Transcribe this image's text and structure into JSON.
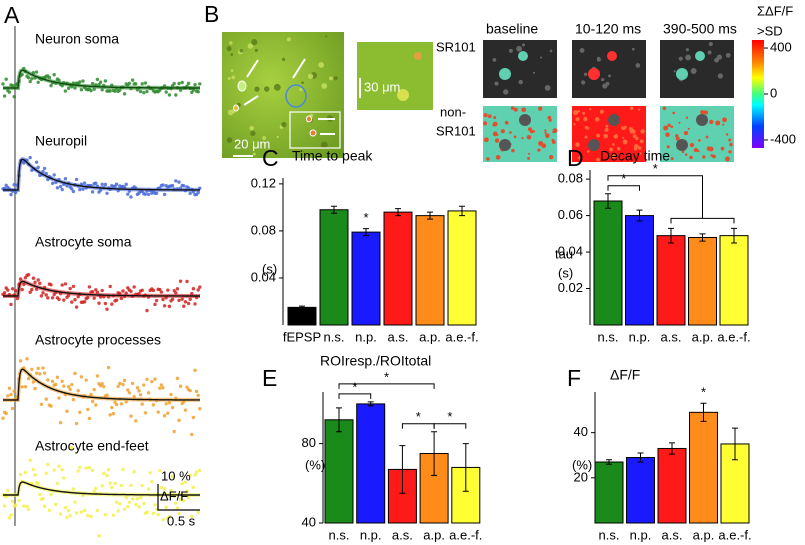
{
  "panel_a": {
    "letter": "A",
    "traces": [
      {
        "label": "Neuron soma",
        "color": "#2e8b2e"
      },
      {
        "label": "Neuropil",
        "color": "#4a6ad8"
      },
      {
        "label": "Astrocyte soma",
        "color": "#d42020"
      },
      {
        "label": "Astrocyte processes",
        "color": "#f0a030"
      },
      {
        "label": "Astrocyte end-feet",
        "color": "#f2f04a"
      }
    ],
    "scale_bar": {
      "y_label": [
        "10 %",
        "ΔF/F"
      ],
      "x_label": "0.5 s"
    }
  },
  "panel_b": {
    "letter": "B",
    "scale_labels": [
      "20 μm",
      "30 μm"
    ],
    "row_labels": [
      [
        "SR101"
      ],
      [
        "non-",
        "SR101"
      ]
    ],
    "column_labels": [
      "baseline",
      "10-120 ms",
      "390-500 ms"
    ],
    "colorbar": {
      "title": [
        "ΣΔF/F",
        ">SD"
      ],
      "lim": [
        -470,
        470
      ],
      "ticks": [
        400,
        0,
        -400
      ]
    }
  },
  "chart_data": [
    {
      "type": "bar",
      "panel": "C",
      "title": "Time to peak",
      "y_label": [
        "(s)"
      ],
      "categories": [
        "fEPSP",
        "n.s.",
        "n.p.",
        "a.s.",
        "a.p.",
        "a.e.-f."
      ],
      "colors": [
        "#000000",
        "#1a8a1a",
        "#1a1aff",
        "#ff1a1a",
        "#ff8c1a",
        "#ffff33"
      ],
      "values": [
        0.015,
        0.098,
        0.079,
        0.096,
        0.093,
        0.097
      ],
      "errors": [
        0.001,
        0.003,
        0.003,
        0.003,
        0.003,
        0.004
      ],
      "ylim": [
        0,
        0.125
      ],
      "yticks": [
        0.04,
        0.08,
        0.12
      ],
      "annotations": [
        "*"
      ]
    },
    {
      "type": "bar",
      "panel": "D",
      "title": "Decay time",
      "y_label": [
        "tau",
        "(s)"
      ],
      "categories": [
        "n.s.",
        "n.p.",
        "a.s.",
        "a.p.",
        "a.e.-f."
      ],
      "colors": [
        "#1a8a1a",
        "#1a1aff",
        "#ff1a1a",
        "#ff8c1a",
        "#ffff33"
      ],
      "values": [
        0.068,
        0.06,
        0.049,
        0.048,
        0.049
      ],
      "errors": [
        0.004,
        0.003,
        0.004,
        0.002,
        0.004
      ],
      "ylim": [
        0,
        0.085
      ],
      "yticks": [
        0.02,
        0.04,
        0.06,
        0.08
      ],
      "annotations": [
        "*",
        "*"
      ]
    },
    {
      "type": "bar",
      "panel": "E",
      "title": "ROIresp./ROItotal",
      "y_label": [
        "(%)"
      ],
      "categories": [
        "n.s.",
        "n.p.",
        "a.s.",
        "a.p.",
        "a.e.-f."
      ],
      "colors": [
        "#1a8a1a",
        "#1a1aff",
        "#ff1a1a",
        "#ff8c1a",
        "#ffff33"
      ],
      "values": [
        92,
        100,
        67,
        75,
        68
      ],
      "errors": [
        6,
        1,
        12,
        11,
        12
      ],
      "ylim": [
        40,
        106
      ],
      "yticks": [
        40,
        80
      ],
      "annotations": [
        "*",
        "*",
        "*",
        "*"
      ]
    },
    {
      "type": "bar",
      "panel": "F",
      "title": "ΔF/F",
      "y_label": [
        "(%)"
      ],
      "categories": [
        "n.s.",
        "n.p.",
        "a.s.",
        "a.p.",
        "a.e.-f."
      ],
      "colors": [
        "#1a8a1a",
        "#1a1aff",
        "#ff1a1a",
        "#ff8c1a",
        "#ffff33"
      ],
      "values": [
        27,
        29,
        33,
        49,
        35
      ],
      "errors": [
        1,
        2,
        2.5,
        4,
        7
      ],
      "ylim": [
        0,
        58
      ],
      "yticks": [
        20,
        40
      ],
      "annotations": [
        "*"
      ]
    }
  ]
}
